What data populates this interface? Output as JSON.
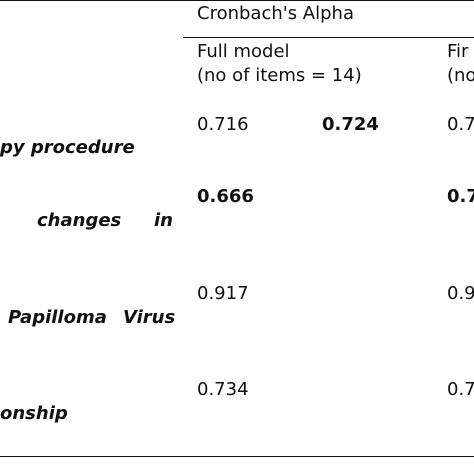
{
  "table": {
    "group_header": "Cronbach's Alpha",
    "columns": [
      {
        "line1": "Full model",
        "line2": "(no of items = 14)"
      },
      {
        "line1": "Fir",
        "line2": "(no"
      }
    ],
    "rows": [
      {
        "label": "py procedure",
        "full": "0.716",
        "extra": "0.724",
        "final": "0.7"
      },
      {
        "label_a": "changes",
        "label_b": "in",
        "full": "0.666",
        "final": "0.7"
      },
      {
        "label_a": "Papilloma",
        "label_b": "Virus",
        "full": "0.917",
        "final": "0.9"
      },
      {
        "label": "onship",
        "full": "0.734",
        "final": "0.7"
      }
    ]
  }
}
